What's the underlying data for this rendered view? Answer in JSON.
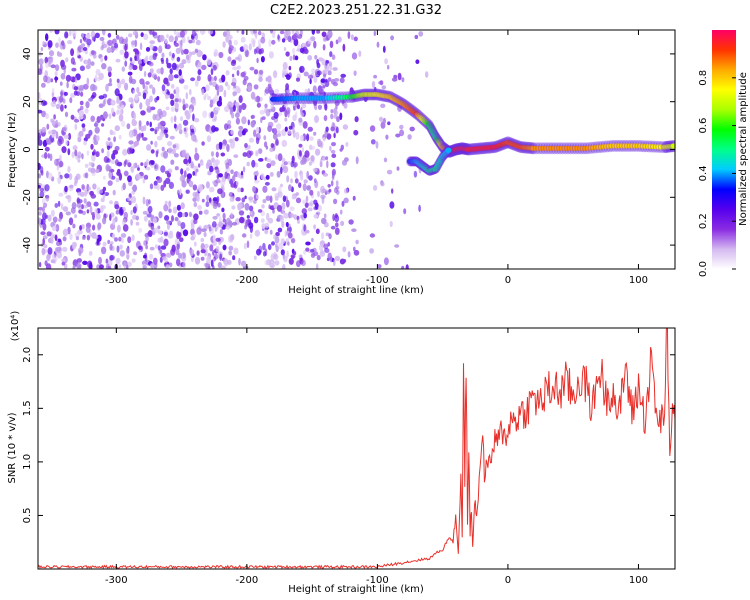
{
  "chart_data": [
    {
      "type": "heatmap",
      "title": "C2E2.2023.251.22.31.G32",
      "xlabel": "Height of straight line (km)",
      "ylabel": "Frequency (Hz)",
      "xlim": [
        -360,
        128
      ],
      "ylim": [
        -50,
        50
      ],
      "xticks": [
        -300,
        -200,
        -100,
        0,
        100
      ],
      "yticks": [
        -40,
        -20,
        0,
        20,
        40
      ],
      "colorbar": {
        "label": "Normalized spectral amplitude",
        "range": [
          0,
          1
        ],
        "ticks": [
          0.0,
          0.2,
          0.4,
          0.6,
          0.8
        ],
        "colors": [
          "#ffffff",
          "#d4b8f0",
          "#8a2be2",
          "#5500ee",
          "#0000ff",
          "#00ccff",
          "#00ff88",
          "#00ff00",
          "#aaff00",
          "#ffff00",
          "#ffaa00",
          "#ff3300",
          "#ff0066"
        ]
      },
      "ridge": {
        "x": [
          -180,
          -160,
          -140,
          -120,
          -110,
          -100,
          -90,
          -80,
          -70,
          -60,
          -55,
          -50,
          -45,
          -40,
          -35,
          -30,
          -20,
          -10,
          0,
          10,
          20,
          40,
          60,
          80,
          100,
          120,
          128
        ],
        "y": [
          21,
          21.5,
          21.5,
          22,
          23,
          23,
          22,
          19,
          15,
          10,
          5,
          1,
          -1,
          0,
          0.5,
          0,
          0.5,
          1,
          3,
          1,
          0.5,
          0.5,
          0.5,
          1.5,
          1.5,
          1,
          1.5
        ],
        "amplitude": [
          0.35,
          0.4,
          0.4,
          0.55,
          0.7,
          0.75,
          0.8,
          0.85,
          0.9,
          0.55,
          0.5,
          0.8,
          0.9,
          0.95,
          0.95,
          0.95,
          0.95,
          0.95,
          0.9,
          0.9,
          0.85,
          0.85,
          0.85,
          0.8,
          0.8,
          0.75,
          0.7
        ]
      },
      "secondary_branch": {
        "x": [
          -75,
          -70,
          -65,
          -60,
          -55,
          -50,
          -45
        ],
        "y": [
          -5,
          -5,
          -7,
          -9,
          -8,
          -3,
          0
        ],
        "amplitude": [
          0.35,
          0.4,
          0.45,
          0.5,
          0.5,
          0.45,
          0.4
        ]
      }
    },
    {
      "type": "line",
      "title": "",
      "xlabel": "Height of straight line (km)",
      "ylabel": "SNR (10 * v/v)",
      "yscale_label": "(x10⁴)",
      "xlim": [
        -360,
        128
      ],
      "ylim": [
        0,
        2.25
      ],
      "xticks": [
        -300,
        -200,
        -100,
        0,
        100
      ],
      "yticks": [
        0.5,
        1.0,
        1.5,
        2.0
      ],
      "series": [
        {
          "color": "#e8302a",
          "x": [
            -360,
            -330,
            -300,
            -270,
            -240,
            -210,
            -180,
            -150,
            -120,
            -100,
            -90,
            -80,
            -70,
            -60,
            -55,
            -50,
            -45,
            -42,
            -40,
            -38,
            -36,
            -35,
            -34,
            -33,
            -32,
            -31,
            -30,
            -29,
            -28,
            -27,
            -26,
            -25,
            -24,
            -22,
            -20,
            -18,
            -16,
            -14,
            -12,
            -10,
            -8,
            -6,
            -4,
            -2,
            0,
            5,
            10,
            15,
            20,
            25,
            30,
            35,
            40,
            45,
            50,
            55,
            60,
            65,
            70,
            75,
            80,
            85,
            90,
            95,
            100,
            105,
            110,
            115,
            120,
            122,
            124,
            126,
            128
          ],
          "y": [
            0.02,
            0.02,
            0.02,
            0.02,
            0.02,
            0.02,
            0.02,
            0.02,
            0.02,
            0.02,
            0.04,
            0.06,
            0.08,
            0.1,
            0.15,
            0.18,
            0.3,
            0.25,
            0.5,
            0.15,
            0.9,
            0.3,
            1.9,
            0.8,
            2.0,
            0.4,
            1.2,
            0.3,
            0.6,
            0.2,
            0.5,
            0.6,
            0.5,
            0.8,
            1.3,
            0.9,
            1.0,
            0.95,
            1.1,
            1.2,
            1.15,
            1.25,
            1.3,
            1.2,
            1.35,
            1.4,
            1.45,
            1.5,
            1.6,
            1.55,
            1.65,
            1.7,
            1.65,
            1.75,
            1.6,
            1.8,
            1.7,
            1.5,
            1.9,
            1.6,
            1.7,
            1.4,
            1.9,
            1.45,
            1.7,
            1.4,
            1.95,
            1.3,
            1.5,
            2.25,
            1.0,
            1.6,
            1.4
          ]
        }
      ]
    }
  ]
}
